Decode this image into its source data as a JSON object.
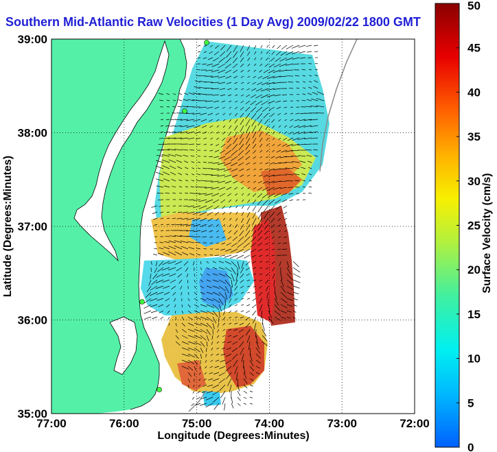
{
  "title": "Southern Mid-Atlantic Raw Velocities (1 Day Avg) 2009/02/22 1800 GMT",
  "chart_data": {
    "type": "map",
    "xlabel": "Longitude (Degrees:Minutes)",
    "ylabel": "Latitude (Degrees:Minutes)",
    "x_ticks": [
      "77:00",
      "76:00",
      "75:00",
      "74:00",
      "73:00",
      "72:00"
    ],
    "y_ticks": [
      "39:00",
      "38:00",
      "37:00",
      "36:00",
      "35:00"
    ],
    "xlim": [
      -77,
      -72
    ],
    "ylim": [
      35,
      39
    ],
    "grid": true,
    "colorbar": {
      "label": "Surface Velocity (cm/s)",
      "range": [
        0,
        50
      ],
      "ticks": [
        "0",
        "5",
        "10",
        "15",
        "20",
        "25",
        "30",
        "35",
        "40",
        "45",
        "50"
      ]
    }
  },
  "colors": {
    "land": "#55f0a8",
    "title": "#1f1fd6"
  }
}
